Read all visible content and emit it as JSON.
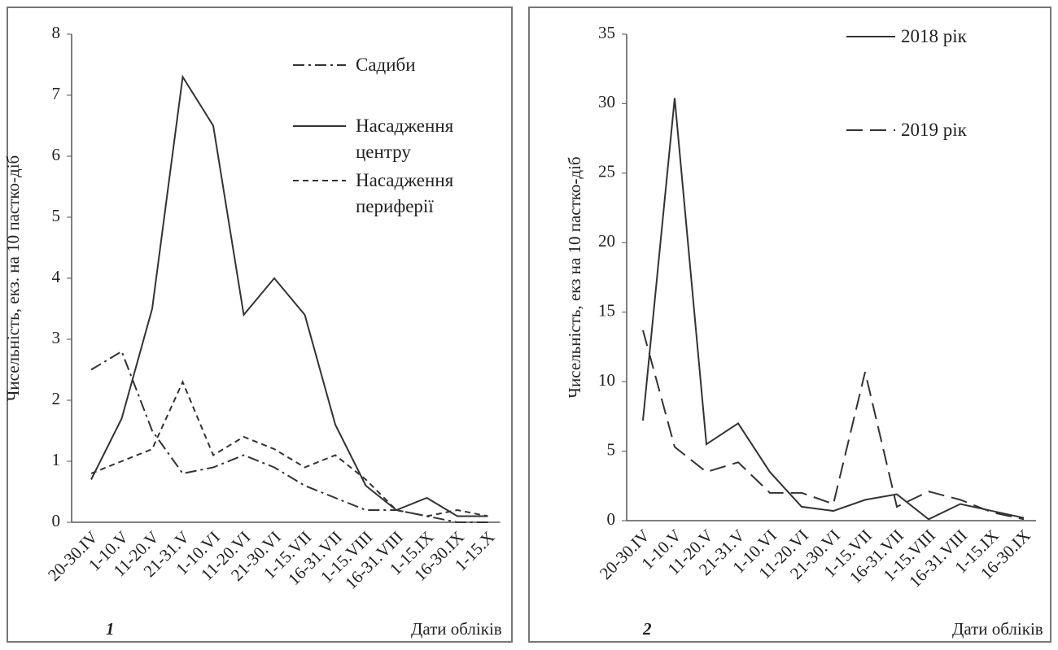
{
  "chart_data": [
    {
      "type": "line",
      "panel_label": "1",
      "x_label": "Дати обліків",
      "y_label": "Чисельність, екз. на 10 пастко-діб",
      "categories": [
        "20-30.IV",
        "1-10.V",
        "11-20.V",
        "21-31.V",
        "1-10.VI",
        "11-20.VI",
        "21-30.VI",
        "1-15.VII",
        "16-31.VII",
        "1-15.VIII",
        "16-31.VIII",
        "1-15.IX",
        "16-30.IX",
        "1-15.X"
      ],
      "series": [
        {
          "name": "Садиби",
          "color": "#333333",
          "dash": "dash-dot",
          "values": [
            2.5,
            2.8,
            1.5,
            0.8,
            0.9,
            1.1,
            0.9,
            0.6,
            0.4,
            0.2,
            0.2,
            0.1,
            0.0,
            0.0
          ]
        },
        {
          "name": "Насадження центру",
          "color": "#333333",
          "dash": "solid",
          "values": [
            0.7,
            1.7,
            3.5,
            7.3,
            6.5,
            3.4,
            4.0,
            3.4,
            1.6,
            0.6,
            0.2,
            0.4,
            0.1,
            0.1
          ]
        },
        {
          "name": "Насадження периферії",
          "color": "#333333",
          "dash": "dashed",
          "values": [
            0.8,
            1.0,
            1.2,
            2.3,
            1.1,
            1.4,
            1.2,
            0.9,
            1.1,
            0.7,
            0.2,
            0.1,
            0.2,
            0.1
          ]
        }
      ],
      "ylim": [
        0,
        8
      ],
      "yticks": [
        0,
        1,
        2,
        3,
        4,
        5,
        6,
        7,
        8
      ],
      "grid": false
    },
    {
      "type": "line",
      "panel_label": "2",
      "x_label": "Дати обліків",
      "y_label": "Чисельність, екз на 10 пастко-діб",
      "categories": [
        "20-30.IV",
        "1-10.V",
        "11-20.V",
        "21-31.V",
        "1-10.VI",
        "11-20.VI",
        "21-30.VI",
        "1-15.VII",
        "16-31.VII",
        "1-15.VIII",
        "16-31.VIII",
        "1-15.IX",
        "16-30.IX"
      ],
      "series": [
        {
          "name": "2018 рік",
          "color": "#333333",
          "dash": "solid",
          "values": [
            7.2,
            30.4,
            5.5,
            7.0,
            3.5,
            1.0,
            0.7,
            1.5,
            1.9,
            0.1,
            1.2,
            0.7,
            0.2
          ]
        },
        {
          "name": "2019 рік",
          "color": "#333333",
          "dash": "long-dash",
          "values": [
            13.7,
            5.3,
            3.5,
            4.2,
            2.0,
            2.0,
            1.2,
            10.7,
            1.0,
            2.1,
            1.5,
            0.6,
            0.1
          ]
        }
      ],
      "ylim": [
        0,
        35
      ],
      "yticks": [
        0,
        5,
        10,
        15,
        20,
        25,
        30,
        35
      ],
      "grid": false
    }
  ]
}
